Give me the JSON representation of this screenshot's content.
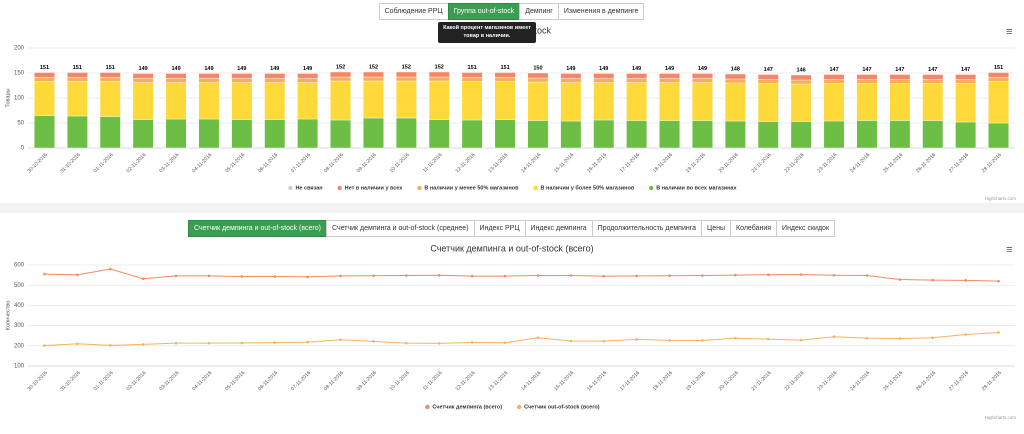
{
  "tabs_top": [
    "Соблюдение РРЦ",
    "Группа out-of-stock",
    "Демпинг",
    "Изменения в демпинге"
  ],
  "tabs_top_active": 1,
  "tooltip": "Какой процент магазинов имеет товар в наличии.",
  "tabs_bottom": [
    "Счетчик демпинга и out-of-stock (всего)",
    "Счетчик демпинга и out-of-stock (среднее)",
    "Индекс РРЦ",
    "Индекс демпинга",
    "Продолжительность демпинга",
    "Цены",
    "Колебания",
    "Индекс скидок"
  ],
  "tabs_bottom_active": 0,
  "chart_data": [
    {
      "type": "bar",
      "stacked": true,
      "title": "Группа out-of-stock",
      "y_label": "Товары",
      "credits": "Highcharts.com",
      "categories": [
        "30-10-2016",
        "31-10-2016",
        "01-11-2016",
        "02-11-2016",
        "03-11-2016",
        "04-11-2016",
        "05-11-2016",
        "06-11-2016",
        "07-11-2016",
        "08-11-2016",
        "09-11-2016",
        "10-11-2016",
        "11-11-2016",
        "12-11-2016",
        "13-11-2016",
        "14-11-2016",
        "15-11-2016",
        "16-11-2016",
        "17-11-2016",
        "18-11-2016",
        "19-11-2016",
        "20-11-2016",
        "21-11-2016",
        "22-11-2016",
        "23-11-2016",
        "24-11-2016",
        "25-11-2016",
        "26-11-2016",
        "27-11-2016",
        "28-11-2016"
      ],
      "ylim": [
        0,
        200
      ],
      "yticks": [
        0,
        50,
        100,
        150,
        200
      ],
      "grid": true,
      "totals": [
        151,
        151,
        151,
        149,
        149,
        149,
        149,
        149,
        149,
        152,
        152,
        152,
        152,
        151,
        151,
        150,
        149,
        149,
        149,
        149,
        149,
        148,
        147,
        146,
        147,
        147,
        147,
        147,
        147,
        151
      ],
      "series": [
        {
          "name": "Не связан",
          "color": "#cccccc",
          "values": [
            0,
            0,
            0,
            0,
            0,
            0,
            0,
            0,
            0,
            0,
            0,
            0,
            0,
            0,
            0,
            0,
            0,
            0,
            0,
            0,
            0,
            0,
            0,
            0,
            0,
            0,
            0,
            0,
            0,
            0
          ]
        },
        {
          "name": "Нет в наличии у всех",
          "color": "#f4866a",
          "values": [
            10,
            10,
            10,
            10,
            10,
            10,
            10,
            10,
            10,
            10,
            10,
            10,
            10,
            10,
            10,
            10,
            10,
            10,
            10,
            10,
            10,
            10,
            10,
            10,
            10,
            10,
            10,
            10,
            10,
            10
          ]
        },
        {
          "name": "В наличии у менее 50% магазинов",
          "color": "#f9ad5c",
          "values": [
            8,
            8,
            8,
            8,
            8,
            8,
            8,
            8,
            8,
            8,
            8,
            8,
            8,
            8,
            8,
            8,
            8,
            8,
            8,
            8,
            8,
            8,
            8,
            8,
            8,
            8,
            8,
            8,
            8,
            8
          ]
        },
        {
          "name": "В наличии у более 50% магазинов",
          "color": "#fdd93a",
          "values": [
            68,
            69,
            70,
            74,
            73,
            73,
            74,
            74,
            73,
            78,
            74,
            74,
            77,
            77,
            76,
            77,
            77,
            75,
            76,
            76,
            76,
            76,
            76,
            75,
            75,
            74,
            74,
            74,
            77,
            83
          ]
        },
        {
          "name": "В наличии во всех магазинах",
          "color": "#6cbf44",
          "values": [
            65,
            64,
            63,
            57,
            58,
            58,
            57,
            57,
            58,
            56,
            60,
            60,
            57,
            56,
            57,
            55,
            54,
            56,
            55,
            55,
            55,
            54,
            53,
            53,
            54,
            55,
            55,
            55,
            52,
            50
          ]
        }
      ]
    },
    {
      "type": "line",
      "title": "Счетчик демпинга и out-of-stock (всего)",
      "y_label": "Количество",
      "credits": "Highcharts.com",
      "categories": [
        "30-10-2016",
        "31-10-2016",
        "01-11-2016",
        "02-11-2016",
        "03-11-2016",
        "04-11-2016",
        "05-11-2016",
        "06-11-2016",
        "07-11-2016",
        "08-11-2016",
        "09-11-2016",
        "10-11-2016",
        "11-11-2016",
        "12-11-2016",
        "13-11-2016",
        "14-11-2016",
        "15-11-2016",
        "16-11-2016",
        "17-11-2016",
        "18-11-2016",
        "19-11-2016",
        "20-11-2016",
        "21-11-2016",
        "22-11-2016",
        "23-11-2016",
        "24-11-2016",
        "25-11-2016",
        "26-11-2016",
        "27-11-2016",
        "28-11-2016"
      ],
      "ylim": [
        100,
        600
      ],
      "yticks": [
        100,
        200,
        300,
        400,
        500,
        600
      ],
      "grid": true,
      "series": [
        {
          "name": "Счетчик демпинга (всего)",
          "color": "#f28a62",
          "values": [
            555,
            551,
            580,
            532,
            546,
            546,
            543,
            543,
            541,
            546,
            547,
            548,
            549,
            545,
            545,
            548,
            548,
            544,
            546,
            547,
            548,
            550,
            552,
            553,
            549,
            548,
            528,
            525,
            524,
            520
          ]
        },
        {
          "name": "Счетчик out-of-stock (всего)",
          "color": "#f7b260",
          "values": [
            201,
            210,
            202,
            207,
            213,
            213,
            214,
            216,
            218,
            230,
            222,
            213,
            212,
            217,
            215,
            240,
            224,
            223,
            232,
            227,
            226,
            238,
            233,
            228,
            245,
            238,
            236,
            240,
            256,
            266
          ]
        }
      ]
    }
  ]
}
